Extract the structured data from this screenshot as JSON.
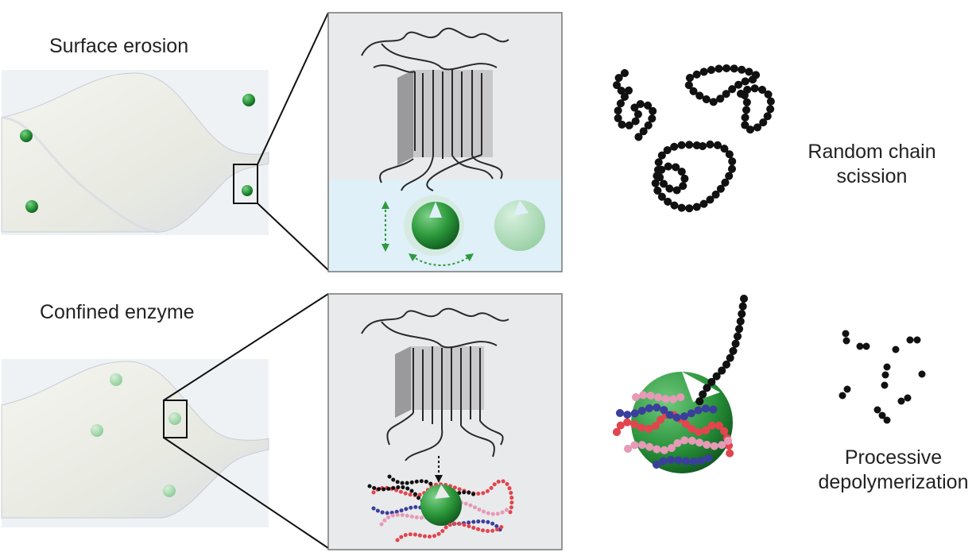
{
  "labels": {
    "surface_erosion": "Surface erosion",
    "confined_enzyme": "Confined enzyme",
    "random_line1": "Random chain",
    "random_line2": "scission",
    "processive_line1": "Processive",
    "processive_line2": "depolymerization"
  },
  "colors": {
    "enzyme_green": "#2e9a3c",
    "film": "#eceee7",
    "water": "#dff0f9",
    "panel": "#e9eaec",
    "chain": "#111111",
    "monomer_red": "#e2454e",
    "monomer_blue": "#3b3f9c",
    "monomer_pink": "#e59ab6"
  },
  "icons": {
    "enzyme": "green-sphere-with-notch",
    "polymer": "beaded-chain"
  }
}
